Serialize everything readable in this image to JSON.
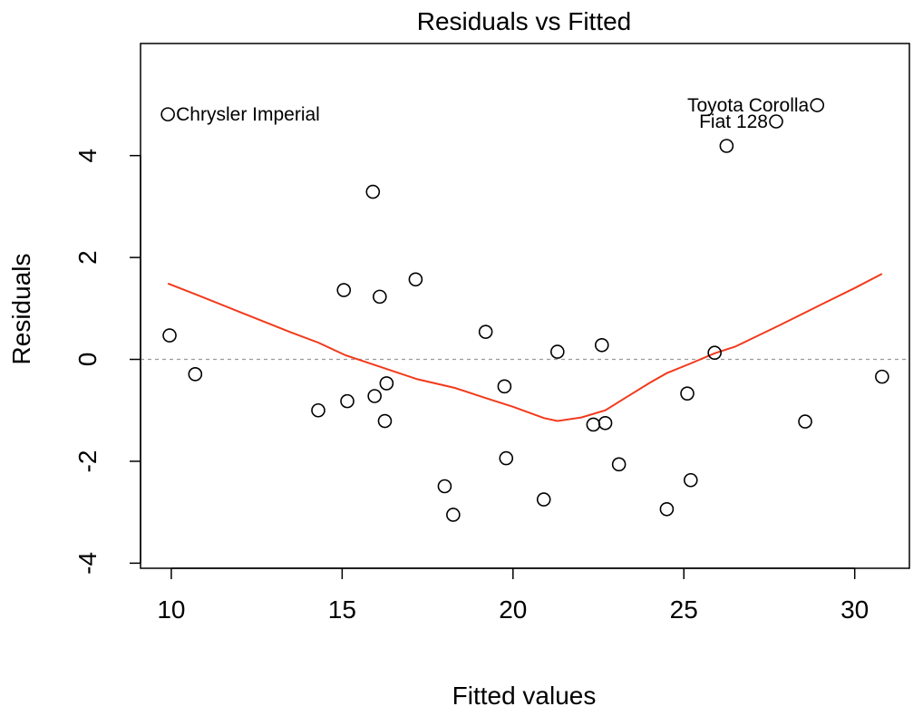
{
  "chart_data": {
    "type": "scatter",
    "title": "Residuals vs Fitted",
    "xlabel": "Fitted values",
    "ylabel": "Residuals",
    "xlim": [
      9.1,
      31.6
    ],
    "ylim": [
      -4.1,
      6.2
    ],
    "x_ticks": [
      10,
      15,
      20,
      25,
      30
    ],
    "y_ticks": [
      -4,
      -2,
      0,
      2,
      4
    ],
    "grid": false,
    "reference_line_y": 0,
    "points": [
      {
        "x": 9.9,
        "y": 4.81,
        "label": "Chrysler Imperial"
      },
      {
        "x": 28.9,
        "y": 4.99,
        "label": "Toyota Corolla"
      },
      {
        "x": 27.7,
        "y": 4.67,
        "label": "Fiat 128"
      },
      {
        "x": 9.95,
        "y": 0.47
      },
      {
        "x": 10.7,
        "y": -0.29
      },
      {
        "x": 14.3,
        "y": -1.0
      },
      {
        "x": 15.05,
        "y": 1.36
      },
      {
        "x": 15.15,
        "y": -0.82
      },
      {
        "x": 15.9,
        "y": 3.29
      },
      {
        "x": 15.95,
        "y": -0.72
      },
      {
        "x": 16.1,
        "y": 1.23
      },
      {
        "x": 16.25,
        "y": -1.21
      },
      {
        "x": 16.3,
        "y": -0.47
      },
      {
        "x": 17.15,
        "y": 1.57
      },
      {
        "x": 18.0,
        "y": -2.49
      },
      {
        "x": 18.25,
        "y": -3.05
      },
      {
        "x": 19.2,
        "y": 0.54
      },
      {
        "x": 19.75,
        "y": -0.53
      },
      {
        "x": 19.8,
        "y": -1.94
      },
      {
        "x": 20.9,
        "y": -2.75
      },
      {
        "x": 21.3,
        "y": 0.15
      },
      {
        "x": 22.35,
        "y": -1.28
      },
      {
        "x": 22.6,
        "y": 0.28
      },
      {
        "x": 22.7,
        "y": -1.25
      },
      {
        "x": 23.1,
        "y": -2.06
      },
      {
        "x": 24.5,
        "y": -2.94
      },
      {
        "x": 25.1,
        "y": -0.67
      },
      {
        "x": 25.2,
        "y": -2.37
      },
      {
        "x": 25.9,
        "y": 0.13
      },
      {
        "x": 26.25,
        "y": 4.19
      },
      {
        "x": 28.55,
        "y": -1.22
      },
      {
        "x": 30.8,
        "y": -0.34
      }
    ],
    "smooth_line": {
      "color": "#f23a1c",
      "x": [
        9.9,
        10.7,
        12.0,
        13.5,
        14.3,
        15.1,
        16.0,
        17.2,
        18.3,
        19.2,
        20.0,
        20.9,
        21.3,
        22.0,
        22.7,
        23.3,
        24.0,
        24.5,
        25.2,
        25.9,
        26.5,
        27.8,
        29.0,
        30.0,
        30.8
      ],
      "y": [
        1.49,
        1.28,
        0.93,
        0.53,
        0.33,
        0.08,
        -0.12,
        -0.39,
        -0.56,
        -0.76,
        -0.93,
        -1.15,
        -1.21,
        -1.14,
        -1.0,
        -0.75,
        -0.46,
        -0.27,
        -0.08,
        0.12,
        0.25,
        0.67,
        1.07,
        1.4,
        1.68
      ]
    }
  }
}
